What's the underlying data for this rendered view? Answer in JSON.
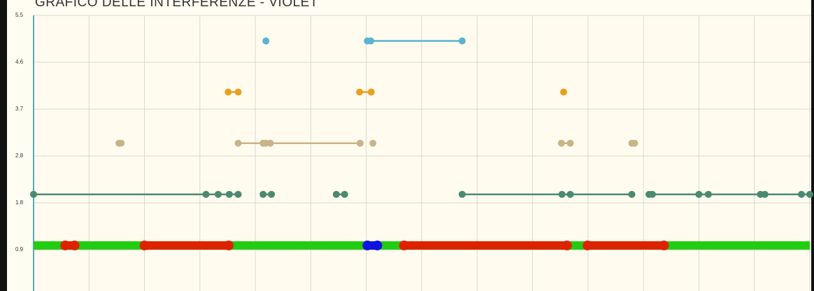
{
  "chart_data": {
    "type": "line",
    "title": "GRAFICO DELLE INTERFERENZE - VIOLET",
    "xlim": [
      0,
      14
    ],
    "xticks": [
      0,
      1,
      2,
      3,
      4,
      5,
      6,
      7,
      8,
      9,
      10,
      11,
      12,
      13,
      14
    ],
    "ylim": [
      0,
      5.5
    ],
    "yticks": [
      {
        "value": 0.917,
        "label": "0.9"
      },
      {
        "value": 1.833,
        "label": "1.8"
      },
      {
        "value": 2.75,
        "label": "2.8"
      },
      {
        "value": 3.667,
        "label": "3.7"
      },
      {
        "value": 4.583,
        "label": "4.6"
      },
      {
        "value": 5.5,
        "label": "5.5"
      }
    ],
    "grid": true,
    "series": [
      {
        "color": "#5ab4d0",
        "x": [
          4.19,
          null,
          6.02,
          6.08,
          7.73
        ],
        "values": [
          5,
          null,
          5,
          5,
          5
        ]
      },
      {
        "color": "#e8a020",
        "x": [
          3.51,
          3.69,
          null,
          5.88,
          6.09,
          null,
          9.56
        ],
        "values": [
          4,
          4,
          null,
          4,
          4,
          null,
          4
        ]
      },
      {
        "color": "#c9b48a",
        "x": [
          1.54,
          1.58,
          null,
          3.69,
          4.14,
          4.19,
          4.27,
          5.89,
          null,
          6.12,
          null,
          9.52,
          9.68,
          null,
          10.79,
          10.84
        ],
        "values": [
          3,
          3,
          null,
          3,
          3,
          3,
          3,
          3,
          null,
          3,
          null,
          3,
          3,
          null,
          3,
          3
        ]
      },
      {
        "color": "#4a8a70",
        "x": [
          0,
          3.11,
          3.33,
          3.53,
          3.69,
          null,
          4.14,
          4.29,
          null,
          5.46,
          5.61,
          null,
          7.73,
          9.53,
          9.68,
          10.79,
          null,
          11.1,
          11.16,
          12.0,
          12.17,
          13.11,
          13.19,
          13.85,
          14.0
        ],
        "values": [
          2,
          2,
          2,
          2,
          2,
          null,
          2,
          2,
          null,
          2,
          2,
          null,
          2,
          2,
          2,
          2,
          null,
          2,
          2,
          2,
          2,
          2,
          2,
          2,
          2
        ]
      },
      {
        "color": "#22cc11",
        "x": [
          0,
          14
        ],
        "values": [
          1,
          1
        ]
      },
      {
        "color": "#dd2200",
        "x": [
          0.57,
          0.74,
          null,
          2.0,
          3.52,
          null,
          6.68,
          9.62,
          null,
          9.99,
          11.37
        ],
        "values": [
          1,
          1,
          null,
          1,
          1,
          null,
          1,
          1,
          null,
          1,
          1
        ]
      },
      {
        "color": "#1010e0",
        "x": [
          6.02,
          6.2
        ],
        "values": [
          1,
          1
        ]
      }
    ]
  }
}
